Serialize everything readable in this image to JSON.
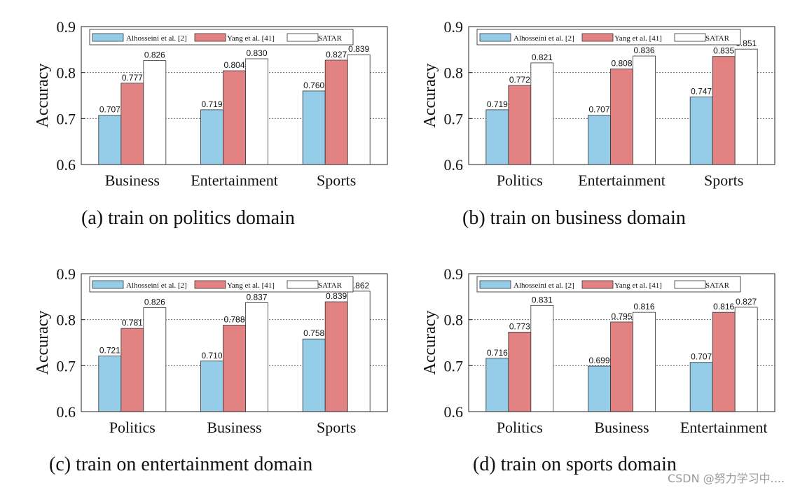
{
  "legend_labels": [
    "Alhosseini et al. [2]",
    "Yang et al. [41]",
    "SATAR"
  ],
  "colors": {
    "alhosseini": "#95cde8",
    "yang": "#e38282",
    "satar": "#ffffff",
    "edge": "#333333"
  },
  "watermark": "CSDN @努力学习中....",
  "chart_data": [
    {
      "type": "bar",
      "caption": "(a)  train on politics domain",
      "ylabel": "Accuracy",
      "ylim": [
        0.6,
        0.9
      ],
      "yticks": [
        "0.6",
        "0.7",
        "0.8",
        "0.9"
      ],
      "grid": "horizontal dotted at 0.7 and 0.8",
      "legend": "top",
      "categories": [
        "Business",
        "Entertainment",
        "Sports"
      ],
      "series": [
        {
          "name": "Alhosseini et al. [2]",
          "values": [
            0.707,
            0.719,
            0.76
          ],
          "labels": [
            "0.707",
            "0.719",
            "0.760"
          ]
        },
        {
          "name": "Yang et al. [41]",
          "values": [
            0.777,
            0.804,
            0.827
          ],
          "labels": [
            "0.777",
            "0.804",
            "0.827"
          ]
        },
        {
          "name": "SATAR",
          "values": [
            0.826,
            0.83,
            0.839
          ],
          "labels": [
            "0.826",
            "0.830",
            "0.839"
          ]
        }
      ]
    },
    {
      "type": "bar",
      "caption": "(b)  train on business domain",
      "ylabel": "Accuracy",
      "ylim": [
        0.6,
        0.9
      ],
      "yticks": [
        "0.6",
        "0.7",
        "0.8",
        "0.9"
      ],
      "grid": "horizontal dotted at 0.7 and 0.8",
      "legend": "top",
      "categories": [
        "Politics",
        "Entertainment",
        "Sports"
      ],
      "series": [
        {
          "name": "Alhosseini et al. [2]",
          "values": [
            0.719,
            0.707,
            0.747
          ],
          "labels": [
            "0.719",
            "0.707",
            "0.747"
          ]
        },
        {
          "name": "Yang et al. [41]",
          "values": [
            0.772,
            0.808,
            0.835
          ],
          "labels": [
            "0.772",
            "0.808",
            "0.835"
          ]
        },
        {
          "name": "SATAR",
          "values": [
            0.821,
            0.836,
            0.851
          ],
          "labels": [
            "0.821",
            "0.836",
            "0.851"
          ]
        }
      ]
    },
    {
      "type": "bar",
      "caption": "(c)  train on entertainment domain",
      "ylabel": "Accuracy",
      "ylim": [
        0.6,
        0.9
      ],
      "yticks": [
        "0.6",
        "0.7",
        "0.8",
        "0.9"
      ],
      "grid": "horizontal dotted at 0.7 and 0.8",
      "legend": "top",
      "categories": [
        "Politics",
        "Business",
        "Sports"
      ],
      "series": [
        {
          "name": "Alhosseini et al. [2]",
          "values": [
            0.721,
            0.71,
            0.758
          ],
          "labels": [
            "0.721",
            "0.710",
            "0.758"
          ]
        },
        {
          "name": "Yang et al. [41]",
          "values": [
            0.781,
            0.788,
            0.839
          ],
          "labels": [
            "0.781",
            "0.788",
            "0.839"
          ]
        },
        {
          "name": "SATAR",
          "values": [
            0.826,
            0.837,
            0.862
          ],
          "labels": [
            "0.826",
            "0.837",
            "0.862"
          ]
        }
      ]
    },
    {
      "type": "bar",
      "caption": "(d)  train on sports domain",
      "ylabel": "Accuracy",
      "ylim": [
        0.6,
        0.9
      ],
      "yticks": [
        "0.6",
        "0.7",
        "0.8",
        "0.9"
      ],
      "grid": "horizontal dotted at 0.7 and 0.8",
      "legend": "top",
      "categories": [
        "Politics",
        "Business",
        "Entertainment"
      ],
      "series": [
        {
          "name": "Alhosseini et al. [2]",
          "values": [
            0.716,
            0.699,
            0.707
          ],
          "labels": [
            "0.716",
            "0.699",
            "0.707"
          ]
        },
        {
          "name": "Yang et al. [41]",
          "values": [
            0.773,
            0.795,
            0.816
          ],
          "labels": [
            "0.773",
            "0.795",
            "0.816"
          ]
        },
        {
          "name": "SATAR",
          "values": [
            0.831,
            0.816,
            0.827
          ],
          "labels": [
            "0.831",
            "0.816",
            "0.827"
          ]
        }
      ]
    }
  ]
}
